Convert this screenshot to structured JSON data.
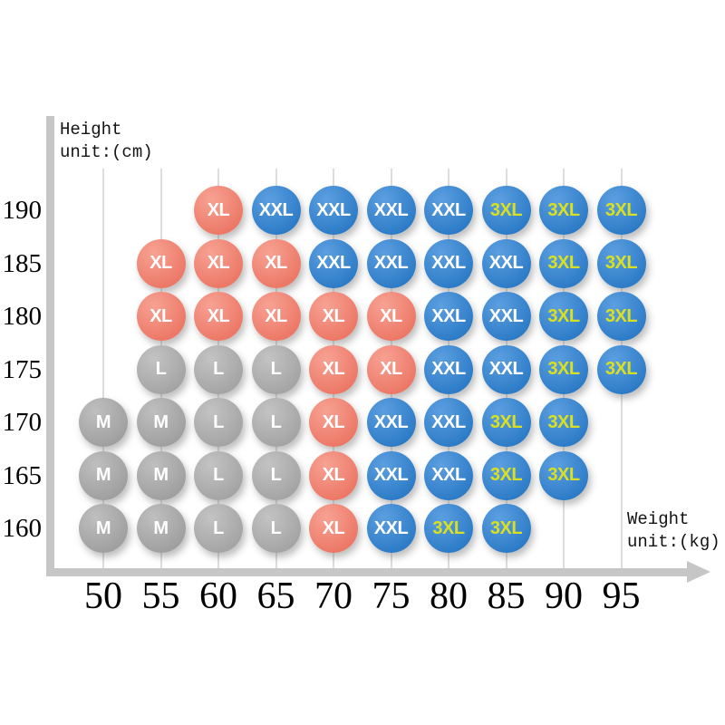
{
  "chart_data": {
    "type": "scatter",
    "xlabel": "Weight unit:(kg)",
    "ylabel": "Height unit:(cm)",
    "y_axis_title": {
      "line1": "Height",
      "line2": "unit:(cm)"
    },
    "x_axis_title": {
      "line1": "Weight",
      "line2": "unit:(kg)"
    },
    "x_ticks": [
      50,
      55,
      60,
      65,
      70,
      75,
      80,
      85,
      90,
      95
    ],
    "y_ticks": [
      190,
      185,
      180,
      175,
      170,
      165,
      160
    ],
    "legend": [
      "M",
      "L",
      "XL",
      "XXL",
      "3XL"
    ],
    "grid": "vertical-only",
    "sizes": {
      "M": {
        "fill": "#9e9e9e",
        "fill_light": "#bfbfbf",
        "text_color": "#ffffff"
      },
      "L": {
        "fill": "#a3a3a3",
        "fill_light": "#c3c3c3",
        "text_color": "#ffffff"
      },
      "XL": {
        "fill": "#ec7664",
        "fill_light": "#f7a294",
        "text_color": "#ffffff"
      },
      "XXL": {
        "fill": "#2b7ac6",
        "fill_light": "#5c9fe0",
        "text_color": "#ffffff"
      },
      "3XL": {
        "fill": "#2b7ac6",
        "fill_light": "#5c9fe0",
        "text_color": "#d9e021"
      }
    },
    "points": [
      {
        "height": 190,
        "weight": 60,
        "size": "XL"
      },
      {
        "height": 190,
        "weight": 65,
        "size": "XXL"
      },
      {
        "height": 190,
        "weight": 70,
        "size": "XXL"
      },
      {
        "height": 190,
        "weight": 75,
        "size": "XXL"
      },
      {
        "height": 190,
        "weight": 80,
        "size": "XXL"
      },
      {
        "height": 190,
        "weight": 85,
        "size": "3XL"
      },
      {
        "height": 190,
        "weight": 90,
        "size": "3XL"
      },
      {
        "height": 190,
        "weight": 95,
        "size": "3XL"
      },
      {
        "height": 185,
        "weight": 55,
        "size": "XL"
      },
      {
        "height": 185,
        "weight": 60,
        "size": "XL"
      },
      {
        "height": 185,
        "weight": 65,
        "size": "XL"
      },
      {
        "height": 185,
        "weight": 70,
        "size": "XXL"
      },
      {
        "height": 185,
        "weight": 75,
        "size": "XXL"
      },
      {
        "height": 185,
        "weight": 80,
        "size": "XXL"
      },
      {
        "height": 185,
        "weight": 85,
        "size": "XXL"
      },
      {
        "height": 185,
        "weight": 90,
        "size": "3XL"
      },
      {
        "height": 185,
        "weight": 95,
        "size": "3XL"
      },
      {
        "height": 180,
        "weight": 55,
        "size": "XL"
      },
      {
        "height": 180,
        "weight": 60,
        "size": "XL"
      },
      {
        "height": 180,
        "weight": 65,
        "size": "XL"
      },
      {
        "height": 180,
        "weight": 70,
        "size": "XL"
      },
      {
        "height": 180,
        "weight": 75,
        "size": "XL"
      },
      {
        "height": 180,
        "weight": 80,
        "size": "XXL"
      },
      {
        "height": 180,
        "weight": 85,
        "size": "XXL"
      },
      {
        "height": 180,
        "weight": 90,
        "size": "3XL"
      },
      {
        "height": 180,
        "weight": 95,
        "size": "3XL"
      },
      {
        "height": 175,
        "weight": 55,
        "size": "L"
      },
      {
        "height": 175,
        "weight": 60,
        "size": "L"
      },
      {
        "height": 175,
        "weight": 65,
        "size": "L"
      },
      {
        "height": 175,
        "weight": 70,
        "size": "XL"
      },
      {
        "height": 175,
        "weight": 75,
        "size": "XL"
      },
      {
        "height": 175,
        "weight": 80,
        "size": "XXL"
      },
      {
        "height": 175,
        "weight": 85,
        "size": "XXL"
      },
      {
        "height": 175,
        "weight": 90,
        "size": "3XL"
      },
      {
        "height": 175,
        "weight": 95,
        "size": "3XL"
      },
      {
        "height": 170,
        "weight": 50,
        "size": "M"
      },
      {
        "height": 170,
        "weight": 55,
        "size": "M"
      },
      {
        "height": 170,
        "weight": 60,
        "size": "L"
      },
      {
        "height": 170,
        "weight": 65,
        "size": "L"
      },
      {
        "height": 170,
        "weight": 70,
        "size": "XL"
      },
      {
        "height": 170,
        "weight": 75,
        "size": "XXL"
      },
      {
        "height": 170,
        "weight": 80,
        "size": "XXL"
      },
      {
        "height": 170,
        "weight": 85,
        "size": "3XL"
      },
      {
        "height": 170,
        "weight": 90,
        "size": "3XL"
      },
      {
        "height": 165,
        "weight": 50,
        "size": "M"
      },
      {
        "height": 165,
        "weight": 55,
        "size": "M"
      },
      {
        "height": 165,
        "weight": 60,
        "size": "L"
      },
      {
        "height": 165,
        "weight": 65,
        "size": "L"
      },
      {
        "height": 165,
        "weight": 70,
        "size": "XL"
      },
      {
        "height": 165,
        "weight": 75,
        "size": "XXL"
      },
      {
        "height": 165,
        "weight": 80,
        "size": "XXL"
      },
      {
        "height": 165,
        "weight": 85,
        "size": "3XL"
      },
      {
        "height": 165,
        "weight": 90,
        "size": "3XL"
      },
      {
        "height": 160,
        "weight": 50,
        "size": "M"
      },
      {
        "height": 160,
        "weight": 55,
        "size": "M"
      },
      {
        "height": 160,
        "weight": 60,
        "size": "L"
      },
      {
        "height": 160,
        "weight": 65,
        "size": "L"
      },
      {
        "height": 160,
        "weight": 70,
        "size": "XL"
      },
      {
        "height": 160,
        "weight": 75,
        "size": "XXL"
      },
      {
        "height": 160,
        "weight": 80,
        "size": "3XL"
      },
      {
        "height": 160,
        "weight": 85,
        "size": "3XL"
      }
    ]
  }
}
